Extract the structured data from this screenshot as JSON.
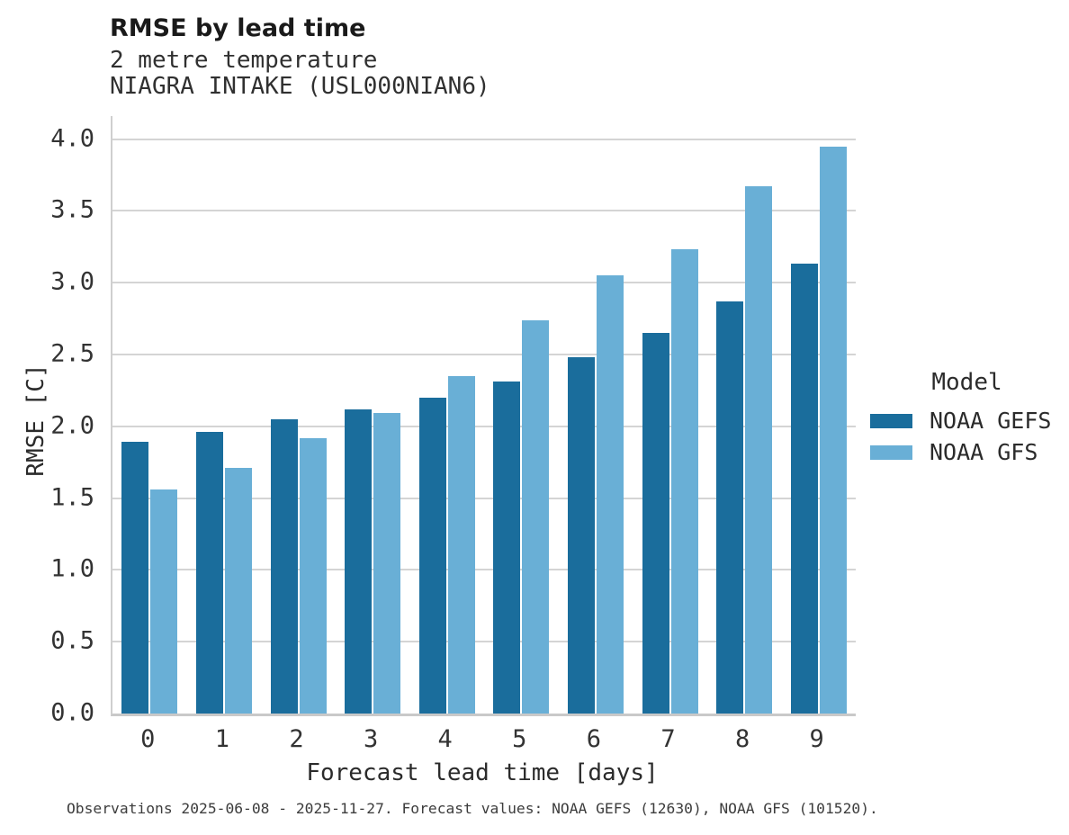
{
  "title": "RMSE by lead time",
  "subtitle_variable": "2 metre temperature",
  "subtitle_station": "NIAGRA INTAKE (USL000NIAN6)",
  "caption": "Observations 2025-06-08 - 2025-11-27. Forecast values: NOAA GEFS (12630), NOAA GFS (101520).",
  "legend": {
    "title": "Model"
  },
  "colors": {
    "gefs_dark_blue": "#1a6d9c",
    "gfs_light_blue": "#69afd6",
    "gridline": "#d4d4d4",
    "axis_line": "#c9c9c9"
  },
  "chart_data": {
    "type": "bar",
    "title": "RMSE by lead time",
    "subtitle": "2 metre temperature — NIAGRA INTAKE (USL000NIAN6)",
    "xlabel": "Forecast lead time [days]",
    "ylabel": "RMSE [C]",
    "categories": [
      "0",
      "1",
      "2",
      "3",
      "4",
      "5",
      "6",
      "7",
      "8",
      "9"
    ],
    "series": [
      {
        "name": "NOAA GEFS",
        "color": "#1a6d9c",
        "values": [
          1.89,
          1.96,
          2.05,
          2.12,
          2.2,
          2.31,
          2.48,
          2.65,
          2.87,
          3.13
        ]
      },
      {
        "name": "NOAA GFS",
        "color": "#69afd6",
        "values": [
          1.56,
          1.71,
          1.92,
          2.09,
          2.35,
          2.74,
          3.05,
          3.23,
          3.67,
          3.95
        ]
      }
    ],
    "ylim": [
      0,
      4.16
    ],
    "yticks": [
      0.0,
      0.5,
      1.0,
      1.5,
      2.0,
      2.5,
      3.0,
      3.5,
      4.0
    ],
    "grid": true,
    "legend_position": "center-right"
  }
}
